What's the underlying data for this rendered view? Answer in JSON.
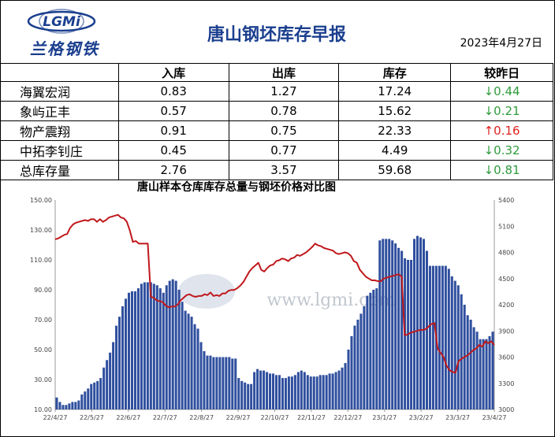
{
  "header": {
    "logo_text": "兰格钢铁",
    "logo_mark": "LGMi",
    "title": "唐山钢坯库存早报",
    "date": "2023年4月27日"
  },
  "table": {
    "columns": [
      "",
      "入库",
      "出库",
      "库存",
      "较昨日"
    ],
    "rows": [
      {
        "name": "海翼宏润",
        "in": "0.83",
        "out": "1.27",
        "stock": "17.24",
        "change": "0.44",
        "dir": "down",
        "arrow": "↓"
      },
      {
        "name": "象屿正丰",
        "in": "0.57",
        "out": "0.78",
        "stock": "15.62",
        "change": "0.21",
        "dir": "down",
        "arrow": "↓"
      },
      {
        "name": "物产震翔",
        "in": "0.91",
        "out": "0.75",
        "stock": "22.33",
        "change": "0.16",
        "dir": "up",
        "arrow": "↑"
      },
      {
        "name": "中拓李钊庄",
        "in": "0.45",
        "out": "0.77",
        "stock": "4.49",
        "change": "0.32",
        "dir": "down",
        "arrow": "↓"
      },
      {
        "name": "总库存量",
        "in": "2.76",
        "out": "3.57",
        "stock": "59.68",
        "change": "0.81",
        "dir": "down",
        "arrow": "↓"
      }
    ],
    "colors": {
      "down": "#2e9b3b",
      "up": "#e02020"
    }
  },
  "chart_data": {
    "type": "bar",
    "title": "唐山样本仓库库存总量与钢坯价格对比图",
    "watermark": "www.lgmi.com",
    "x_ticks": [
      "22/4/27",
      "22/5/27",
      "22/6/27",
      "22/7/27",
      "22/8/27",
      "22/9/27",
      "22/10/27",
      "22/11/27",
      "22/12/27",
      "23/1/27",
      "23/2/27",
      "23/3/27",
      "23/4/27"
    ],
    "left_axis": {
      "ticks": [
        "10.00",
        "30.00",
        "50.00",
        "70.00",
        "90.00",
        "110.00",
        "130.00",
        "150.00"
      ],
      "min": 10,
      "max": 150
    },
    "right_axis": {
      "ticks": [
        "3000",
        "3300",
        "3600",
        "3900",
        "4200",
        "4500",
        "4800",
        "5100",
        "5400"
      ],
      "min": 3000,
      "max": 5400
    },
    "series": [
      {
        "kind": "bar",
        "color": "#2f4f9e",
        "values": [
          18,
          15,
          13,
          13,
          14,
          15,
          15,
          16,
          20,
          22,
          24,
          27,
          28,
          29,
          31,
          38,
          43,
          48,
          55,
          66,
          72,
          79,
          84,
          88,
          89,
          89,
          91,
          94,
          95,
          95,
          95,
          94,
          93,
          91,
          88,
          93,
          96,
          97,
          96,
          90,
          82,
          76,
          74,
          72,
          67,
          64,
          55,
          49,
          46,
          46,
          45,
          45,
          45,
          45,
          45,
          45,
          44,
          44,
          31,
          29,
          28,
          27,
          27,
          35,
          37,
          36,
          36,
          35,
          34,
          34,
          33,
          33,
          31,
          31,
          32,
          32,
          33,
          35,
          36,
          35,
          33,
          32,
          32,
          32,
          33,
          33,
          33,
          34,
          34,
          35,
          36,
          38,
          41,
          50,
          59,
          66,
          70,
          74,
          79,
          86,
          88,
          90,
          91,
          123,
          124,
          124,
          124,
          123,
          121,
          118,
          116,
          111,
          110,
          110,
          124,
          126,
          125,
          124,
          116,
          106,
          106,
          106,
          106,
          106,
          106,
          104,
          99,
          96,
          93,
          87,
          80,
          73,
          70,
          65,
          62,
          57,
          57,
          57,
          59,
          62
        ]
      },
      {
        "kind": "line",
        "color": "#c0181b",
        "axis": "right",
        "values": [
          4950,
          4960,
          4980,
          5000,
          5010,
          5080,
          5120,
          5140,
          5150,
          5160,
          5170,
          5160,
          5180,
          5180,
          5150,
          5180,
          5150,
          5170,
          5200,
          5210,
          5220,
          5230,
          5200,
          5190,
          5150,
          5050,
          4920,
          4930,
          4900,
          4900,
          4900,
          4900,
          4290,
          4280,
          4250,
          4240,
          4230,
          4190,
          4170,
          4180,
          4180,
          4200,
          4250,
          4280,
          4310,
          4320,
          4300,
          4290,
          4300,
          4300,
          4320,
          4310,
          4340,
          4300,
          4310,
          4300,
          4330,
          4330,
          4360,
          4370,
          4370,
          4390,
          4420,
          4460,
          4520,
          4580,
          4620,
          4650,
          4680,
          4600,
          4580,
          4620,
          4650,
          4660,
          4700,
          4710,
          4730,
          4720,
          4700,
          4730,
          4740,
          4770,
          4760,
          4780,
          4800,
          4830,
          4860,
          4900,
          4880,
          4870,
          4850,
          4840,
          4830,
          4820,
          4790,
          4780,
          4790,
          4800,
          4790,
          4760,
          4700,
          4680,
          4600,
          4560,
          4520,
          4500,
          4480,
          4480,
          4470,
          4470,
          4500,
          4510,
          4520,
          4530,
          4540,
          4550,
          4520,
          3850,
          3860,
          3880,
          3890,
          3900,
          3910,
          3910,
          3920,
          3950,
          3980,
          3990,
          3700,
          3650,
          3600,
          3500,
          3450,
          3430,
          3420,
          3550,
          3580,
          3600,
          3620,
          3650,
          3680,
          3700,
          3740,
          3720,
          3780,
          3760,
          3780,
          3740
        ]
      }
    ]
  }
}
